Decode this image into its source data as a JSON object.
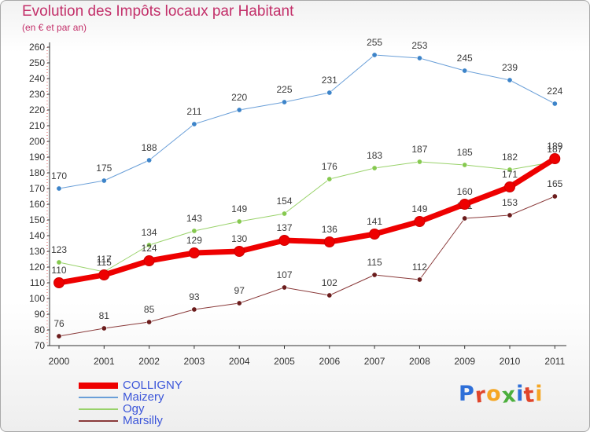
{
  "title": "Evolution des Impôts locaux par Habitant",
  "subtitle": "(en € et par an)",
  "logo": {
    "text": "Proxiti",
    "letter_colors": [
      "#2e6fd8",
      "#e0452b",
      "#f5a623",
      "#4caf3d",
      "#2e6fd8",
      "#e0452b",
      "#f5a623"
    ]
  },
  "chart_data": {
    "type": "line",
    "title": "Evolution des Impôts locaux par Habitant",
    "subtitle": "(en € et par an)",
    "xlabel": "",
    "ylabel": "",
    "x": [
      "2000",
      "2001",
      "2002",
      "2003",
      "2004",
      "2005",
      "2006",
      "2007",
      "2008",
      "2009",
      "2010",
      "2011"
    ],
    "ylim": [
      70,
      260
    ],
    "ytick_step": 10,
    "grid": false,
    "legend_position": "bottom-left",
    "series": [
      {
        "name": "Maizery",
        "color": "#6a9fd8",
        "marker": "#3d84c9",
        "width": 1,
        "values": [
          170,
          175,
          188,
          211,
          220,
          225,
          231,
          255,
          253,
          245,
          239,
          224
        ]
      },
      {
        "name": "Ogy",
        "color": "#99d26a",
        "marker": "#86c94f",
        "width": 1,
        "values": [
          123,
          117,
          134,
          143,
          149,
          154,
          176,
          183,
          187,
          185,
          182,
          187
        ]
      },
      {
        "name": "Marsilly",
        "color": "#8a3a3a",
        "marker": "#6b1c1c",
        "width": 1,
        "values": [
          76,
          81,
          85,
          93,
          97,
          107,
          102,
          115,
          112,
          151,
          153,
          165
        ]
      },
      {
        "name": "COLLIGNY",
        "color": "#ee0000",
        "marker": "#ee0000",
        "width": 7,
        "values": [
          110,
          115,
          124,
          129,
          130,
          137,
          136,
          141,
          149,
          160,
          171,
          189
        ]
      }
    ],
    "legend_order": [
      "COLLIGNY",
      "Maizery",
      "Ogy",
      "Marsilly"
    ]
  }
}
